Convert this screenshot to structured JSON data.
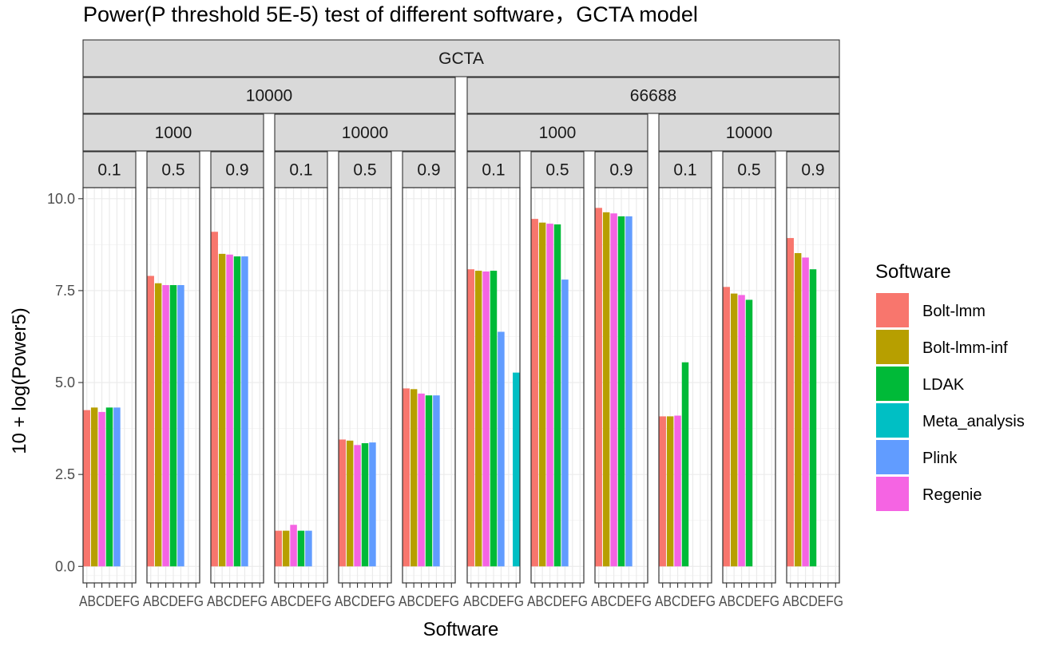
{
  "chart_data": {
    "type": "bar",
    "title": "Power(P threshold 5E-5) test of different software，GCTA model",
    "xlabel": "Software",
    "ylabel": "10 + log(Power5)",
    "ylim": [
      -0.45,
      10.3
    ],
    "yticks": [
      "0.0",
      "2.5",
      "5.0",
      "7.5",
      "10.0"
    ],
    "ytick_values": [
      0,
      2.5,
      5,
      7.5,
      10
    ],
    "categories": [
      "A",
      "B",
      "C",
      "D",
      "E",
      "F",
      "G"
    ],
    "x_tick_text": "ABCDEFG",
    "grid": true,
    "legend": {
      "title": "Software",
      "position": "right",
      "items": [
        {
          "name": "Bolt-lmm",
          "color": "#F8766D"
        },
        {
          "name": "Bolt-lmm-inf",
          "color": "#B79F00"
        },
        {
          "name": "LDAK",
          "color": "#00BA38"
        },
        {
          "name": "Meta_analysis",
          "color": "#00BFC4"
        },
        {
          "name": "Plink",
          "color": "#619CFF"
        },
        {
          "name": "Regenie",
          "color": "#F564E3"
        }
      ]
    },
    "facet_top": "GCTA",
    "facet_groups": [
      {
        "label": "10000",
        "subgroups": [
          {
            "label": "1000",
            "panels": [
              "0.1",
              "0.5",
              "0.9"
            ]
          },
          {
            "label": "10000",
            "panels": [
              "0.1",
              "0.5",
              "0.9"
            ]
          }
        ]
      },
      {
        "label": "66688",
        "subgroups": [
          {
            "label": "1000",
            "panels": [
              "0.1",
              "0.5",
              "0.9"
            ]
          },
          {
            "label": "10000",
            "panels": [
              "0.1",
              "0.5",
              "0.9"
            ]
          }
        ]
      }
    ],
    "panels": [
      {
        "bars": [
          {
            "x": "A",
            "software": "Bolt-lmm",
            "value": 4.25
          },
          {
            "x": "B",
            "software": "Bolt-lmm-inf",
            "value": 4.32
          },
          {
            "x": "C",
            "software": "Regenie",
            "value": 4.2
          },
          {
            "x": "D",
            "software": "LDAK",
            "value": 4.32
          },
          {
            "x": "E",
            "software": "Plink",
            "value": 4.32
          }
        ]
      },
      {
        "bars": [
          {
            "x": "A",
            "software": "Bolt-lmm",
            "value": 7.9
          },
          {
            "x": "B",
            "software": "Bolt-lmm-inf",
            "value": 7.7
          },
          {
            "x": "C",
            "software": "Regenie",
            "value": 7.65
          },
          {
            "x": "D",
            "software": "LDAK",
            "value": 7.65
          },
          {
            "x": "E",
            "software": "Plink",
            "value": 7.65
          }
        ]
      },
      {
        "bars": [
          {
            "x": "A",
            "software": "Bolt-lmm",
            "value": 9.1
          },
          {
            "x": "B",
            "software": "Bolt-lmm-inf",
            "value": 8.5
          },
          {
            "x": "C",
            "software": "Regenie",
            "value": 8.48
          },
          {
            "x": "D",
            "software": "LDAK",
            "value": 8.43
          },
          {
            "x": "E",
            "software": "Plink",
            "value": 8.43
          }
        ]
      },
      {
        "bars": [
          {
            "x": "A",
            "software": "Bolt-lmm",
            "value": 0.97
          },
          {
            "x": "B",
            "software": "Bolt-lmm-inf",
            "value": 0.97
          },
          {
            "x": "C",
            "software": "Regenie",
            "value": 1.13
          },
          {
            "x": "D",
            "software": "LDAK",
            "value": 0.97
          },
          {
            "x": "E",
            "software": "Plink",
            "value": 0.97
          }
        ]
      },
      {
        "bars": [
          {
            "x": "A",
            "software": "Bolt-lmm",
            "value": 3.45
          },
          {
            "x": "B",
            "software": "Bolt-lmm-inf",
            "value": 3.42
          },
          {
            "x": "C",
            "software": "Regenie",
            "value": 3.3
          },
          {
            "x": "D",
            "software": "LDAK",
            "value": 3.35
          },
          {
            "x": "E",
            "software": "Plink",
            "value": 3.37
          }
        ]
      },
      {
        "bars": [
          {
            "x": "A",
            "software": "Bolt-lmm",
            "value": 4.84
          },
          {
            "x": "B",
            "software": "Bolt-lmm-inf",
            "value": 4.82
          },
          {
            "x": "C",
            "software": "Regenie",
            "value": 4.7
          },
          {
            "x": "D",
            "software": "LDAK",
            "value": 4.65
          },
          {
            "x": "E",
            "software": "Plink",
            "value": 4.65
          }
        ]
      },
      {
        "bars": [
          {
            "x": "A",
            "software": "Bolt-lmm",
            "value": 8.08
          },
          {
            "x": "B",
            "software": "Bolt-lmm-inf",
            "value": 8.04
          },
          {
            "x": "C",
            "software": "Regenie",
            "value": 8.02
          },
          {
            "x": "D",
            "software": "LDAK",
            "value": 8.04
          },
          {
            "x": "E",
            "software": "Plink",
            "value": 6.38
          },
          {
            "x": "G",
            "software": "Meta_analysis",
            "value": 5.27
          }
        ]
      },
      {
        "bars": [
          {
            "x": "A",
            "software": "Bolt-lmm",
            "value": 9.45
          },
          {
            "x": "B",
            "software": "Bolt-lmm-inf",
            "value": 9.35
          },
          {
            "x": "C",
            "software": "Regenie",
            "value": 9.32
          },
          {
            "x": "D",
            "software": "LDAK",
            "value": 9.3
          },
          {
            "x": "E",
            "software": "Plink",
            "value": 7.8
          }
        ]
      },
      {
        "bars": [
          {
            "x": "A",
            "software": "Bolt-lmm",
            "value": 9.75
          },
          {
            "x": "B",
            "software": "Bolt-lmm-inf",
            "value": 9.63
          },
          {
            "x": "C",
            "software": "Regenie",
            "value": 9.6
          },
          {
            "x": "D",
            "software": "LDAK",
            "value": 9.52
          },
          {
            "x": "E",
            "software": "Plink",
            "value": 9.52
          }
        ]
      },
      {
        "bars": [
          {
            "x": "A",
            "software": "Bolt-lmm",
            "value": 4.08
          },
          {
            "x": "B",
            "software": "Bolt-lmm-inf",
            "value": 4.08
          },
          {
            "x": "C",
            "software": "Regenie",
            "value": 4.1
          },
          {
            "x": "D",
            "software": "LDAK",
            "value": 5.55
          }
        ]
      },
      {
        "bars": [
          {
            "x": "A",
            "software": "Bolt-lmm",
            "value": 7.6
          },
          {
            "x": "B",
            "software": "Bolt-lmm-inf",
            "value": 7.42
          },
          {
            "x": "C",
            "software": "Regenie",
            "value": 7.38
          },
          {
            "x": "D",
            "software": "LDAK",
            "value": 7.25
          }
        ]
      },
      {
        "bars": [
          {
            "x": "A",
            "software": "Bolt-lmm",
            "value": 8.93
          },
          {
            "x": "B",
            "software": "Bolt-lmm-inf",
            "value": 8.52
          },
          {
            "x": "C",
            "software": "Regenie",
            "value": 8.4
          },
          {
            "x": "D",
            "software": "LDAK",
            "value": 8.08
          }
        ]
      }
    ]
  }
}
